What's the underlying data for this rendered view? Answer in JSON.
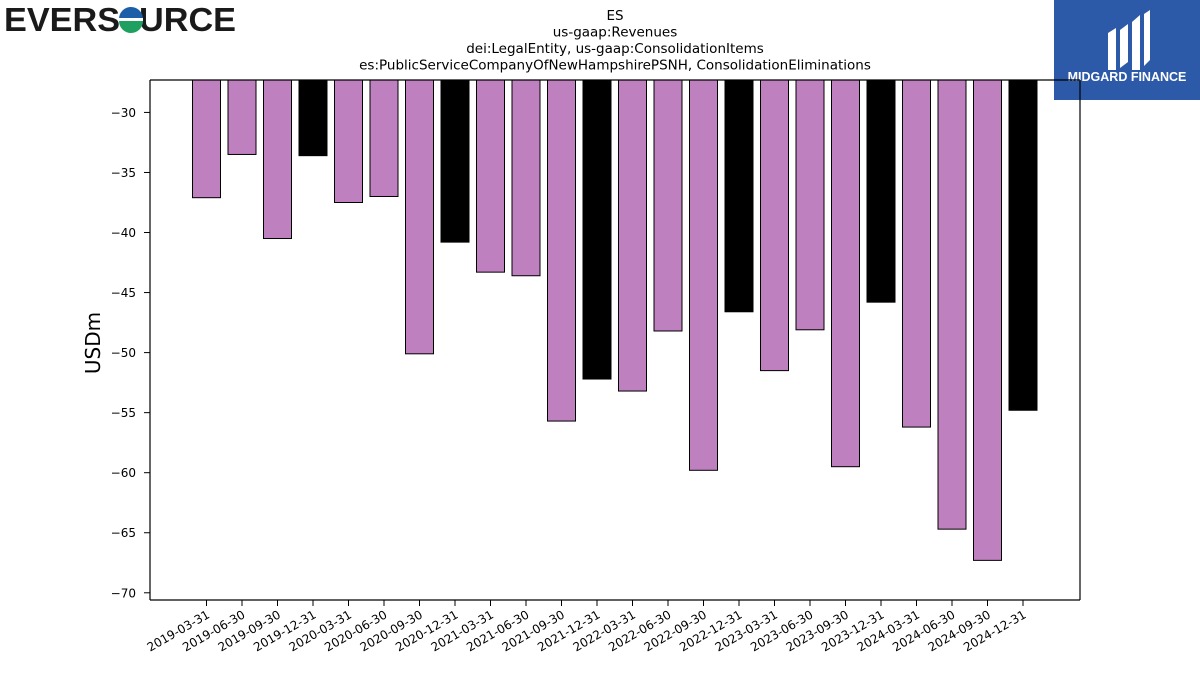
{
  "brand": {
    "left_logo_text": "EVERSOURCE",
    "right_logo_text": "MIDGARD FINANCE",
    "right_logo_bg": "#2c5aa8"
  },
  "chart_data": {
    "type": "bar",
    "title": [
      "ES",
      "us-gaap:Revenues",
      "dei:LegalEntity, us-gaap:ConsolidationItems",
      "es:PublicServiceCompanyOfNewHampshirePSNH, ConsolidationEliminations"
    ],
    "xlabel": "",
    "ylabel": "USDm",
    "ylim": [
      -70.6,
      -27.3
    ],
    "yticks": [
      -30,
      -35,
      -40,
      -45,
      -50,
      -55,
      -60,
      -65,
      -70
    ],
    "yticklabels": [
      "−30",
      "−35",
      "−40",
      "−45",
      "−50",
      "−55",
      "−60",
      "−65",
      "−70"
    ],
    "colors": {
      "quarter": "#bf80bf",
      "year_end": "#000000",
      "edge": "#000000"
    },
    "categories": [
      "2019-03-31",
      "2019-06-30",
      "2019-09-30",
      "2019-12-31",
      "2020-03-31",
      "2020-06-30",
      "2020-09-30",
      "2020-12-31",
      "2021-03-31",
      "2021-06-30",
      "2021-09-30",
      "2021-12-31",
      "2022-03-31",
      "2022-06-30",
      "2022-09-30",
      "2022-12-31",
      "2023-03-31",
      "2023-06-30",
      "2023-09-30",
      "2023-12-31",
      "2024-03-31",
      "2024-06-30",
      "2024-09-30",
      "2024-12-31"
    ],
    "values": [
      -37.1,
      -33.5,
      -40.5,
      -33.6,
      -37.5,
      -37.0,
      -50.1,
      -40.8,
      -43.3,
      -43.6,
      -55.7,
      -52.2,
      -53.2,
      -48.2,
      -59.8,
      -46.6,
      -51.5,
      -48.1,
      -59.5,
      -45.8,
      -56.2,
      -64.7,
      -67.3,
      -54.8
    ],
    "year_end": [
      false,
      false,
      false,
      true,
      false,
      false,
      false,
      true,
      false,
      false,
      false,
      true,
      false,
      false,
      false,
      true,
      false,
      false,
      false,
      true,
      false,
      false,
      false,
      true
    ],
    "grid": false,
    "legend": "none"
  }
}
